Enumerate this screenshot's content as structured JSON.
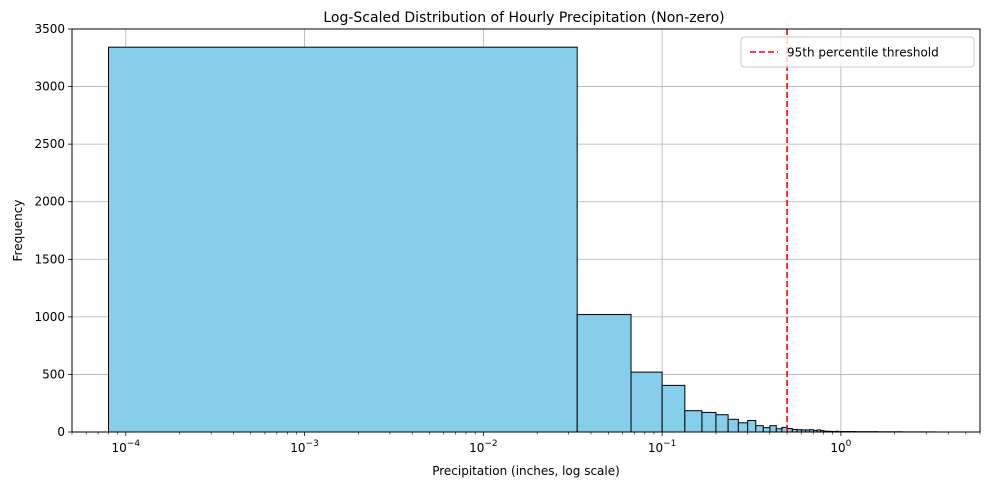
{
  "chart_data": {
    "type": "bar",
    "subtype": "histogram",
    "title": "Log-Scaled Distribution of Hourly Precipitation (Non-zero)",
    "xlabel": "Precipitation (inches, log scale)",
    "ylabel": "Frequency",
    "x_scale": "log",
    "xlim": [
      5e-05,
      6.0
    ],
    "ylim": [
      0,
      3500
    ],
    "grid": true,
    "bar_color": "#87CEEB",
    "bar_edge_color": "#000000",
    "bins": [
      {
        "x0": 8e-05,
        "x1": 0.0335,
        "count": 3342
      },
      {
        "x0": 0.0335,
        "x1": 0.067,
        "count": 1020
      },
      {
        "x0": 0.067,
        "x1": 0.1,
        "count": 520
      },
      {
        "x0": 0.1,
        "x1": 0.134,
        "count": 405
      },
      {
        "x0": 0.134,
        "x1": 0.167,
        "count": 185
      },
      {
        "x0": 0.167,
        "x1": 0.2,
        "count": 170
      },
      {
        "x0": 0.2,
        "x1": 0.234,
        "count": 150
      },
      {
        "x0": 0.234,
        "x1": 0.267,
        "count": 110
      },
      {
        "x0": 0.267,
        "x1": 0.301,
        "count": 80
      },
      {
        "x0": 0.301,
        "x1": 0.334,
        "count": 100
      },
      {
        "x0": 0.334,
        "x1": 0.368,
        "count": 55
      },
      {
        "x0": 0.368,
        "x1": 0.401,
        "count": 38
      },
      {
        "x0": 0.401,
        "x1": 0.435,
        "count": 55
      },
      {
        "x0": 0.435,
        "x1": 0.468,
        "count": 28
      },
      {
        "x0": 0.468,
        "x1": 0.502,
        "count": 40
      },
      {
        "x0": 0.502,
        "x1": 0.535,
        "count": 30
      },
      {
        "x0": 0.535,
        "x1": 0.569,
        "count": 22
      },
      {
        "x0": 0.569,
        "x1": 0.602,
        "count": 20
      },
      {
        "x0": 0.602,
        "x1": 0.636,
        "count": 18
      },
      {
        "x0": 0.636,
        "x1": 0.669,
        "count": 18
      },
      {
        "x0": 0.669,
        "x1": 0.703,
        "count": 20
      },
      {
        "x0": 0.703,
        "x1": 0.736,
        "count": 14
      },
      {
        "x0": 0.736,
        "x1": 0.77,
        "count": 18
      },
      {
        "x0": 0.77,
        "x1": 0.803,
        "count": 12
      },
      {
        "x0": 0.803,
        "x1": 0.837,
        "count": 7
      },
      {
        "x0": 0.837,
        "x1": 0.87,
        "count": 6
      },
      {
        "x0": 0.87,
        "x1": 0.904,
        "count": 5
      },
      {
        "x0": 0.904,
        "x1": 0.937,
        "count": 4
      },
      {
        "x0": 0.937,
        "x1": 0.971,
        "count": 7
      },
      {
        "x0": 0.971,
        "x1": 1.004,
        "count": 3
      },
      {
        "x0": 1.004,
        "x1": 1.2,
        "count": 4
      },
      {
        "x0": 1.2,
        "x1": 1.6,
        "count": 3
      },
      {
        "x0": 1.6,
        "x1": 2.2,
        "count": 2
      },
      {
        "x0": 2.2,
        "x1": 2.8,
        "count": 1
      },
      {
        "x0": 2.8,
        "x1": 3.4,
        "count": 1
      }
    ],
    "threshold": {
      "label": "95th percentile threshold",
      "x": 0.5,
      "color": "#FF0000",
      "style": "dashed"
    },
    "legend": {
      "position": "top-right",
      "entries": [
        "95th percentile threshold"
      ]
    },
    "yticks": [
      0,
      500,
      1000,
      1500,
      2000,
      2500,
      3000,
      3500
    ],
    "xticks": [
      {
        "value": 0.0001,
        "base": "10",
        "exp": "−4"
      },
      {
        "value": 0.001,
        "base": "10",
        "exp": "−3"
      },
      {
        "value": 0.01,
        "base": "10",
        "exp": "−2"
      },
      {
        "value": 0.1,
        "base": "10",
        "exp": "−1"
      },
      {
        "value": 1,
        "base": "10",
        "exp": "0"
      }
    ]
  }
}
